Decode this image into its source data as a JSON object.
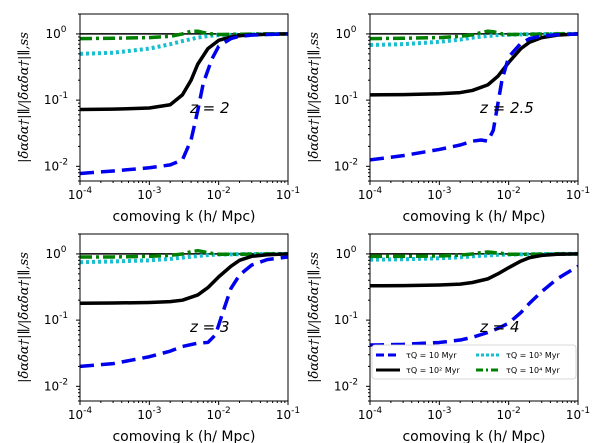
{
  "chart_data": [
    {
      "type": "line",
      "panel": "top-left",
      "annotation": "z = 2",
      "xlabel": "comoving k (h/ Mpc)",
      "ylabel": "|δ̃αδ̃α†|∥/|δ̃αδ̃α†|∥,ss",
      "xscale": "log",
      "yscale": "log",
      "xlim": [
        0.0001,
        0.1
      ],
      "ylim": [
        0.006,
        2
      ],
      "xticks": [
        "10^-4",
        "10^-3",
        "10^-2",
        "10^-1"
      ],
      "yticks": [
        "10^-2",
        "10^-1",
        "10^0"
      ],
      "series": [
        {
          "name": "τ_Q = 10 Myr",
          "color": "#0000ee",
          "style": "dashed",
          "x": [
            0.0001,
            0.0003,
            0.001,
            0.002,
            0.003,
            0.004,
            0.005,
            0.006,
            0.008,
            0.01,
            0.015,
            0.02,
            0.03,
            0.05,
            0.1
          ],
          "y": [
            0.0078,
            0.0085,
            0.0095,
            0.0105,
            0.0125,
            0.025,
            0.07,
            0.18,
            0.42,
            0.65,
            0.85,
            0.92,
            0.96,
            0.98,
            1.0
          ]
        },
        {
          "name": "τ_Q = 10^2 Myr",
          "color": "#000000",
          "style": "solid",
          "x": [
            0.0001,
            0.0003,
            0.001,
            0.002,
            0.003,
            0.004,
            0.005,
            0.007,
            0.01,
            0.015,
            0.02,
            0.03,
            0.05,
            0.1
          ],
          "y": [
            0.072,
            0.073,
            0.076,
            0.085,
            0.12,
            0.2,
            0.35,
            0.6,
            0.8,
            0.9,
            0.94,
            0.97,
            0.99,
            1.0
          ]
        },
        {
          "name": "τ_Q = 10^3 Myr",
          "color": "#17becf",
          "style": "dotted",
          "x": [
            0.0001,
            0.0003,
            0.001,
            0.002,
            0.003,
            0.005,
            0.007,
            0.01,
            0.02,
            0.05,
            0.1
          ],
          "y": [
            0.5,
            0.52,
            0.6,
            0.7,
            0.78,
            0.88,
            0.93,
            0.96,
            0.98,
            0.99,
            1.0
          ]
        },
        {
          "name": "τ_Q = 10^4 Myr",
          "color": "#008000",
          "style": "dashdot",
          "x": [
            0.0001,
            0.0003,
            0.001,
            0.002,
            0.003,
            0.004,
            0.005,
            0.006,
            0.008,
            0.01,
            0.02,
            0.05,
            0.1
          ],
          "y": [
            0.85,
            0.86,
            0.88,
            0.92,
            1.0,
            1.1,
            1.1,
            1.05,
            1.0,
            0.98,
            0.99,
            1.0,
            1.0
          ]
        },
        {
          "name": "ss",
          "color": "#000000",
          "style": "solid-ref",
          "x": [
            0.0001,
            0.1
          ],
          "y": [
            1.0,
            1.0
          ]
        }
      ]
    },
    {
      "type": "line",
      "panel": "top-right",
      "annotation": "z = 2.5",
      "xlabel": "comoving k (h/ Mpc)",
      "ylabel": "|δ̃αδ̃α†|∥/|δ̃αδ̃α†|∥,ss",
      "xscale": "log",
      "yscale": "log",
      "xlim": [
        0.0001,
        0.1
      ],
      "ylim": [
        0.006,
        2
      ],
      "xticks": [
        "10^-4",
        "10^-3",
        "10^-2",
        "10^-1"
      ],
      "yticks": [
        "10^-2",
        "10^-1",
        "10^0"
      ],
      "series": [
        {
          "name": "τ_Q = 10 Myr",
          "color": "#0000ee",
          "style": "dashed",
          "x": [
            0.0001,
            0.0003,
            0.001,
            0.002,
            0.003,
            0.004,
            0.005,
            0.006,
            0.008,
            0.01,
            0.015,
            0.02,
            0.03,
            0.05,
            0.1
          ],
          "y": [
            0.0125,
            0.0145,
            0.018,
            0.021,
            0.024,
            0.025,
            0.024,
            0.035,
            0.2,
            0.45,
            0.72,
            0.85,
            0.93,
            0.97,
            1.0
          ]
        },
        {
          "name": "τ_Q = 10^2 Myr",
          "color": "#000000",
          "style": "solid",
          "x": [
            0.0001,
            0.0003,
            0.001,
            0.002,
            0.003,
            0.005,
            0.007,
            0.01,
            0.015,
            0.02,
            0.03,
            0.05,
            0.1
          ],
          "y": [
            0.12,
            0.121,
            0.125,
            0.13,
            0.14,
            0.17,
            0.23,
            0.37,
            0.6,
            0.75,
            0.88,
            0.96,
            1.0
          ]
        },
        {
          "name": "τ_Q = 10^3 Myr",
          "color": "#17becf",
          "style": "dotted",
          "x": [
            0.0001,
            0.0003,
            0.001,
            0.002,
            0.003,
            0.005,
            0.007,
            0.01,
            0.02,
            0.05,
            0.1
          ],
          "y": [
            0.68,
            0.7,
            0.76,
            0.82,
            0.88,
            0.93,
            0.96,
            0.97,
            0.99,
            1.0,
            1.0
          ]
        },
        {
          "name": "τ_Q = 10^4 Myr",
          "color": "#008000",
          "style": "dashdot",
          "x": [
            0.0001,
            0.0003,
            0.001,
            0.002,
            0.003,
            0.004,
            0.005,
            0.006,
            0.008,
            0.01,
            0.02,
            0.05,
            0.1
          ],
          "y": [
            0.85,
            0.86,
            0.88,
            0.92,
            0.97,
            1.05,
            1.1,
            1.08,
            1.0,
            0.98,
            0.99,
            1.0,
            1.0
          ]
        },
        {
          "name": "ss",
          "color": "#000000",
          "style": "solid-ref",
          "x": [
            0.0001,
            0.1
          ],
          "y": [
            1.0,
            1.0
          ]
        }
      ]
    },
    {
      "type": "line",
      "panel": "bottom-left",
      "annotation": "z = 3",
      "xlabel": "comoving k (h/ Mpc)",
      "ylabel": "|δ̃αδ̃α†|∥/|δ̃αδ̃α†|∥,ss",
      "xscale": "log",
      "yscale": "log",
      "xlim": [
        0.0001,
        0.1
      ],
      "ylim": [
        0.006,
        2
      ],
      "xticks": [
        "10^-4",
        "10^-3",
        "10^-2",
        "10^-1"
      ],
      "yticks": [
        "10^-2",
        "10^-1",
        "10^0"
      ],
      "series": [
        {
          "name": "τ_Q = 10 Myr",
          "color": "#0000ee",
          "style": "dashed",
          "x": [
            0.0001,
            0.0003,
            0.001,
            0.002,
            0.003,
            0.005,
            0.007,
            0.009,
            0.012,
            0.015,
            0.02,
            0.03,
            0.05,
            0.1
          ],
          "y": [
            0.02,
            0.022,
            0.028,
            0.034,
            0.04,
            0.045,
            0.046,
            0.06,
            0.15,
            0.3,
            0.48,
            0.68,
            0.82,
            0.9
          ]
        },
        {
          "name": "τ_Q = 10^2 Myr",
          "color": "#000000",
          "style": "solid",
          "x": [
            0.0001,
            0.0003,
            0.001,
            0.002,
            0.003,
            0.005,
            0.007,
            0.01,
            0.015,
            0.02,
            0.03,
            0.05,
            0.1
          ],
          "y": [
            0.18,
            0.181,
            0.185,
            0.19,
            0.2,
            0.24,
            0.31,
            0.45,
            0.65,
            0.8,
            0.92,
            0.97,
            1.0
          ]
        },
        {
          "name": "τ_Q = 10^3 Myr",
          "color": "#17becf",
          "style": "dotted",
          "x": [
            0.0001,
            0.0003,
            0.001,
            0.002,
            0.003,
            0.005,
            0.007,
            0.01,
            0.02,
            0.05,
            0.1
          ],
          "y": [
            0.75,
            0.77,
            0.8,
            0.84,
            0.88,
            0.93,
            0.96,
            0.98,
            0.99,
            1.0,
            1.0
          ]
        },
        {
          "name": "τ_Q = 10^4 Myr",
          "color": "#008000",
          "style": "dashdot",
          "x": [
            0.0001,
            0.0003,
            0.001,
            0.002,
            0.003,
            0.004,
            0.005,
            0.006,
            0.008,
            0.01,
            0.02,
            0.05,
            0.1
          ],
          "y": [
            0.9,
            0.9,
            0.92,
            0.95,
            1.0,
            1.08,
            1.12,
            1.08,
            1.02,
            0.99,
            0.99,
            1.0,
            1.0
          ]
        },
        {
          "name": "ss",
          "color": "#000000",
          "style": "solid-ref",
          "x": [
            0.0001,
            0.1
          ],
          "y": [
            1.0,
            1.0
          ]
        }
      ]
    },
    {
      "type": "line",
      "panel": "bottom-right",
      "annotation": "z = 4",
      "xlabel": "comoving k (h/ Mpc)",
      "ylabel": "|δ̃αδ̃α†|∥/|δ̃αδ̃α†|∥,ss",
      "xscale": "log",
      "yscale": "log",
      "xlim": [
        0.0001,
        0.1
      ],
      "ylim": [
        0.006,
        2
      ],
      "xticks": [
        "10^-4",
        "10^-3",
        "10^-2",
        "10^-1"
      ],
      "yticks": [
        "10^-2",
        "10^-1",
        "10^0"
      ],
      "series": [
        {
          "name": "τ_Q = 10 Myr",
          "color": "#0000ee",
          "style": "dashed",
          "x": [
            0.0001,
            0.0003,
            0.001,
            0.002,
            0.003,
            0.005,
            0.007,
            0.01,
            0.015,
            0.02,
            0.03,
            0.05,
            0.1
          ],
          "y": [
            0.042,
            0.043,
            0.046,
            0.05,
            0.055,
            0.065,
            0.075,
            0.09,
            0.13,
            0.18,
            0.27,
            0.42,
            0.65
          ]
        },
        {
          "name": "τ_Q = 10^2 Myr",
          "color": "#000000",
          "style": "solid",
          "x": [
            0.0001,
            0.0003,
            0.001,
            0.002,
            0.003,
            0.005,
            0.007,
            0.01,
            0.015,
            0.02,
            0.03,
            0.05,
            0.1
          ],
          "y": [
            0.33,
            0.332,
            0.34,
            0.35,
            0.37,
            0.42,
            0.5,
            0.62,
            0.78,
            0.88,
            0.95,
            0.99,
            1.0
          ]
        },
        {
          "name": "τ_Q = 10^3 Myr",
          "color": "#17becf",
          "style": "dotted",
          "x": [
            0.0001,
            0.0003,
            0.001,
            0.002,
            0.003,
            0.005,
            0.007,
            0.01,
            0.02,
            0.05,
            0.1
          ],
          "y": [
            0.82,
            0.83,
            0.86,
            0.89,
            0.92,
            0.95,
            0.97,
            0.98,
            0.99,
            1.0,
            1.0
          ]
        },
        {
          "name": "τ_Q = 10^4 Myr",
          "color": "#008000",
          "style": "dashdot",
          "x": [
            0.0001,
            0.0003,
            0.001,
            0.002,
            0.003,
            0.004,
            0.005,
            0.006,
            0.008,
            0.01,
            0.02,
            0.05,
            0.1
          ],
          "y": [
            0.92,
            0.92,
            0.93,
            0.96,
            1.0,
            1.05,
            1.07,
            1.05,
            1.02,
            0.99,
            0.99,
            1.0,
            1.0
          ]
        },
        {
          "name": "ss",
          "color": "#000000",
          "style": "solid-ref",
          "x": [
            0.0001,
            0.1
          ],
          "y": [
            1.0,
            1.0
          ]
        }
      ]
    }
  ],
  "legend": {
    "placement": "lower-right of bottom-right panel",
    "entries": [
      "τQ = 10 Myr",
      "τQ = 10³ Myr",
      "τQ = 10² Myr",
      "τQ = 10⁴ Myr"
    ]
  }
}
